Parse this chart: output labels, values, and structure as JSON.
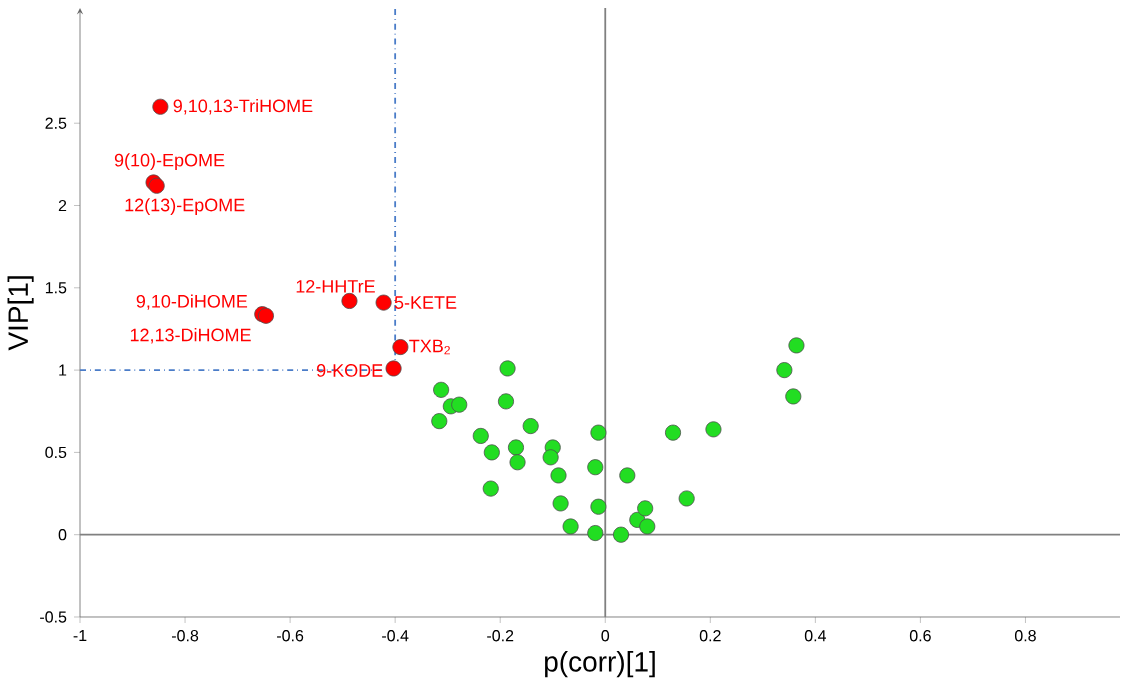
{
  "chart_data": {
    "type": "scatter",
    "xlabel": "p(corr)[1]",
    "ylabel": "VIP[1]",
    "xlim": [
      -1,
      0.98
    ],
    "ylim": [
      -0.5,
      3.2
    ],
    "xticks": [
      -1,
      -0.8,
      -0.6,
      -0.4,
      -0.2,
      0,
      0.2,
      0.4,
      0.6,
      0.8
    ],
    "yticks": [
      -0.5,
      0,
      0.5,
      1,
      1.5,
      2,
      2.5
    ],
    "grid": false,
    "series": [
      {
        "color": "#ff0000",
        "x": [
          -0.847,
          -0.86,
          -0.854,
          -0.653,
          -0.646,
          -0.487,
          -0.422,
          -0.39,
          -0.403
        ],
        "values": [
          2.6,
          2.14,
          2.12,
          1.34,
          1.33,
          1.42,
          1.41,
          1.14,
          1.01
        ]
      },
      {
        "color": "#22dd22",
        "x": [
          -0.3125,
          -0.316,
          -0.294,
          -0.278,
          -0.237,
          -0.216,
          -0.218,
          -0.186,
          -0.189,
          -0.17,
          -0.167,
          -0.142,
          -0.1,
          -0.104,
          -0.089,
          -0.085,
          -0.066,
          -0.019,
          -0.013,
          -0.013,
          -0.019,
          0.03,
          0.042,
          0.061,
          0.076,
          0.08,
          0.129,
          0.155,
          0.206,
          0.341,
          0.364,
          0.358
        ],
        "values": [
          0.88,
          0.69,
          0.78,
          0.79,
          0.6,
          0.5,
          0.28,
          1.01,
          0.81,
          0.53,
          0.44,
          0.66,
          0.53,
          0.47,
          0.36,
          0.19,
          0.05,
          0.41,
          0.62,
          0.17,
          0.01,
          0.0,
          0.36,
          0.09,
          0.16,
          0.05,
          0.62,
          0.22,
          0.64,
          1.0,
          1.15,
          0.84
        ]
      }
    ],
    "ref_lines": [
      {
        "axis": "x",
        "value": -0.4,
        "color": "#4a7cc8",
        "line_style": "dashdot"
      },
      {
        "axis": "y",
        "value": 1,
        "color": "#4a7cc8",
        "line_style": "dashdot"
      },
      {
        "axis": "x",
        "value": 0,
        "color": "#808080",
        "line_style": "solid"
      },
      {
        "axis": "y",
        "value": 0,
        "color": "#808080",
        "line_style": "solid"
      }
    ],
    "annotations": [
      {
        "text": "9,10,13-TriHOME",
        "x": -0.847,
        "y": 2.6
      },
      {
        "text": "9(10)-EpOME",
        "x": -0.86,
        "y": 2.14
      },
      {
        "text": "12(13)-EpOME",
        "x": -0.854,
        "y": 2.12
      },
      {
        "text": "9,10-DiHOME",
        "x": -0.653,
        "y": 1.34
      },
      {
        "text": "12,13-DiHOME",
        "x": -0.646,
        "y": 1.33
      },
      {
        "text": "12-HHTrE",
        "x": -0.487,
        "y": 1.42
      },
      {
        "text": "5-KETE",
        "x": -0.422,
        "y": 1.41
      },
      {
        "text": "TXB$_{2}$",
        "x": -0.39,
        "y": 1.14
      },
      {
        "text": "9-KODE",
        "x": -0.403,
        "y": 1.01
      }
    ]
  }
}
